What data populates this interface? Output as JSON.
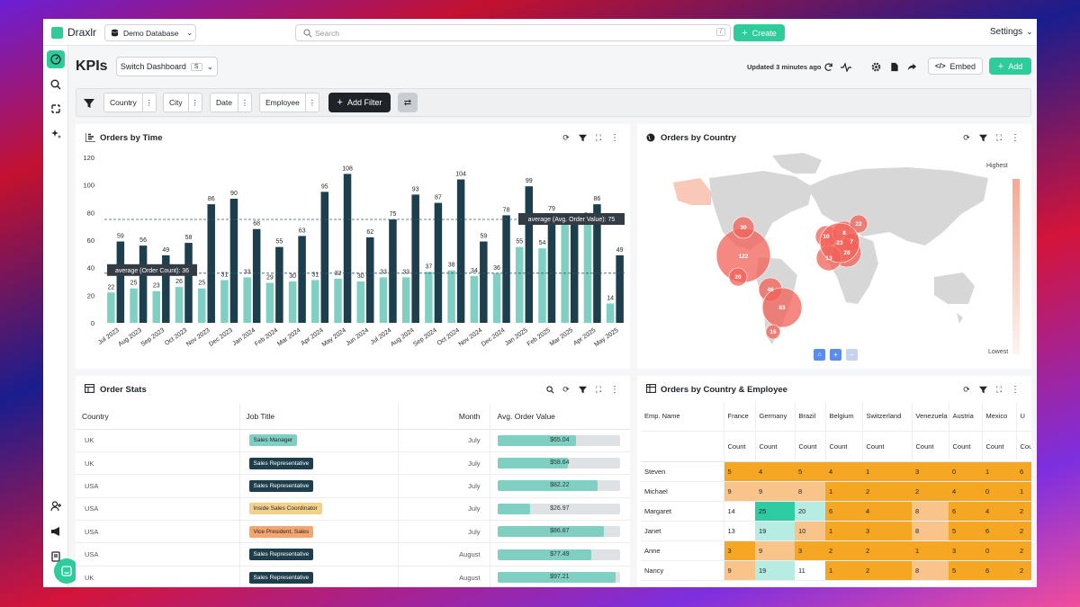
{
  "app": {
    "name": "Draxlr",
    "database": "Demo Database",
    "search_placeholder": "Search",
    "search_shortcut": "/",
    "create": "Create",
    "settings": "Settings"
  },
  "page": {
    "title": "KPIs",
    "switch": "Switch Dashboard",
    "switch_key": "S",
    "updated": "Updated 3 minutes ago",
    "embed": "Embed",
    "add": "Add"
  },
  "filters": {
    "items": [
      "Country",
      "City",
      "Date",
      "Employee"
    ],
    "add": "Add Filter"
  },
  "colors": {
    "accent": "#2ecc9a",
    "teal": "#7fcfc3",
    "dark": "#1d3e4c",
    "orange": "#f5a623",
    "light_orange": "#f9c48a",
    "map_red": "#f26158"
  },
  "orders_by_time": {
    "title": "Orders by Time"
  },
  "chart_data": {
    "type": "bar",
    "categories": [
      "Jul 2023",
      "Aug 2023",
      "Sep 2023",
      "Oct 2023",
      "Nov 2023",
      "Dec 2023",
      "Jan 2024",
      "Feb 2024",
      "Mar 2024",
      "Apr 2024",
      "May 2024",
      "Jun 2024",
      "Jul 2024",
      "Aug 2024",
      "Sep 2024",
      "Oct 2024",
      "Nov 2024",
      "Dec 2024",
      "Jan 2025",
      "Feb 2025",
      "Mar 2025",
      "Apr 2025",
      "May 2025"
    ],
    "series": [
      {
        "name": "Order Count",
        "color": "#7fcfc3",
        "values": [
          22,
          25,
          23,
          26,
          25,
          31,
          33,
          29,
          30,
          31,
          32,
          30,
          33,
          33,
          37,
          38,
          34,
          36,
          55,
          54,
          73,
          74,
          14
        ]
      },
      {
        "name": "Avg. Order Value",
        "color": "#1d3e4c",
        "values": [
          59,
          56,
          49,
          58,
          86,
          90,
          68,
          55,
          63,
          95,
          108,
          62,
          75,
          93,
          87,
          104,
          59,
          78,
          99,
          79,
          73,
          86,
          49
        ]
      }
    ],
    "yticks": [
      0,
      20,
      40,
      60,
      80,
      100,
      120
    ],
    "ylim": [
      0,
      120
    ],
    "reference_lines": [
      {
        "label": "average (Order Count): 36",
        "value": 36
      },
      {
        "label": "average (Avg. Order Value): 75",
        "value": 75
      }
    ]
  },
  "orders_by_country": {
    "title": "Orders by Country",
    "legend_high": "Highest",
    "legend_low": "Lowest",
    "bubbles": [
      "122",
      "30",
      "20",
      "46",
      "83",
      "16",
      "10",
      "8",
      "7",
      "22",
      "23",
      "28",
      "13"
    ]
  },
  "order_stats": {
    "title": "Order Stats",
    "columns": [
      "Country",
      "Job Title",
      "Month",
      "Avg. Order Value"
    ],
    "rows": [
      {
        "country": "UK",
        "job": "Sales Manager",
        "month": "July",
        "value": "$65.04",
        "pct": 0.64,
        "badge": "teal"
      },
      {
        "country": "UK",
        "job": "Sales Representative",
        "month": "July",
        "value": "$58.64",
        "pct": 0.58,
        "badge": "dark"
      },
      {
        "country": "USA",
        "job": "Sales Representative",
        "month": "July",
        "value": "$82.22",
        "pct": 0.82,
        "badge": "dark"
      },
      {
        "country": "USA",
        "job": "Inside Sales Coordinator",
        "month": "July",
        "value": "$26.97",
        "pct": 0.27,
        "badge": "yellow"
      },
      {
        "country": "USA",
        "job": "Vice President, Sales",
        "month": "July",
        "value": "$86.87",
        "pct": 0.87,
        "badge": "orange"
      },
      {
        "country": "USA",
        "job": "Sales Representative",
        "month": "August",
        "value": "$77.49",
        "pct": 0.77,
        "badge": "dark"
      },
      {
        "country": "UK",
        "job": "Sales Representative",
        "month": "August",
        "value": "$97.21",
        "pct": 0.97,
        "badge": "dark"
      }
    ]
  },
  "country_employee": {
    "title": "Orders by Country & Employee",
    "first_col": "Emp. Name",
    "sub": "Count",
    "countries": [
      "France",
      "Germany",
      "Brazil",
      "Belgium",
      "Switzerland",
      "Venezuela",
      "Austria",
      "Mexico",
      "U"
    ],
    "rows": [
      {
        "name": "Steven",
        "values": [
          "5",
          "4",
          "5",
          "4",
          "1",
          "3",
          "0",
          "1",
          "6"
        ]
      },
      {
        "name": "Michael",
        "values": [
          "9",
          "9",
          "8",
          "1",
          "2",
          "2",
          "4",
          "0",
          "1"
        ]
      },
      {
        "name": "Margaret",
        "values": [
          "14",
          "25",
          "20",
          "6",
          "4",
          "8",
          "6",
          "4",
          "2"
        ]
      },
      {
        "name": "Janet",
        "values": [
          "13",
          "19",
          "10",
          "1",
          "3",
          "8",
          "5",
          "6",
          "2"
        ]
      },
      {
        "name": "Anne",
        "values": [
          "3",
          "9",
          "3",
          "2",
          "2",
          "1",
          "3",
          "0",
          "2"
        ]
      },
      {
        "name": "Nancy",
        "values": [
          "9",
          "19",
          "11",
          "1",
          "2",
          "8",
          "5",
          "6",
          "2"
        ]
      }
    ]
  }
}
